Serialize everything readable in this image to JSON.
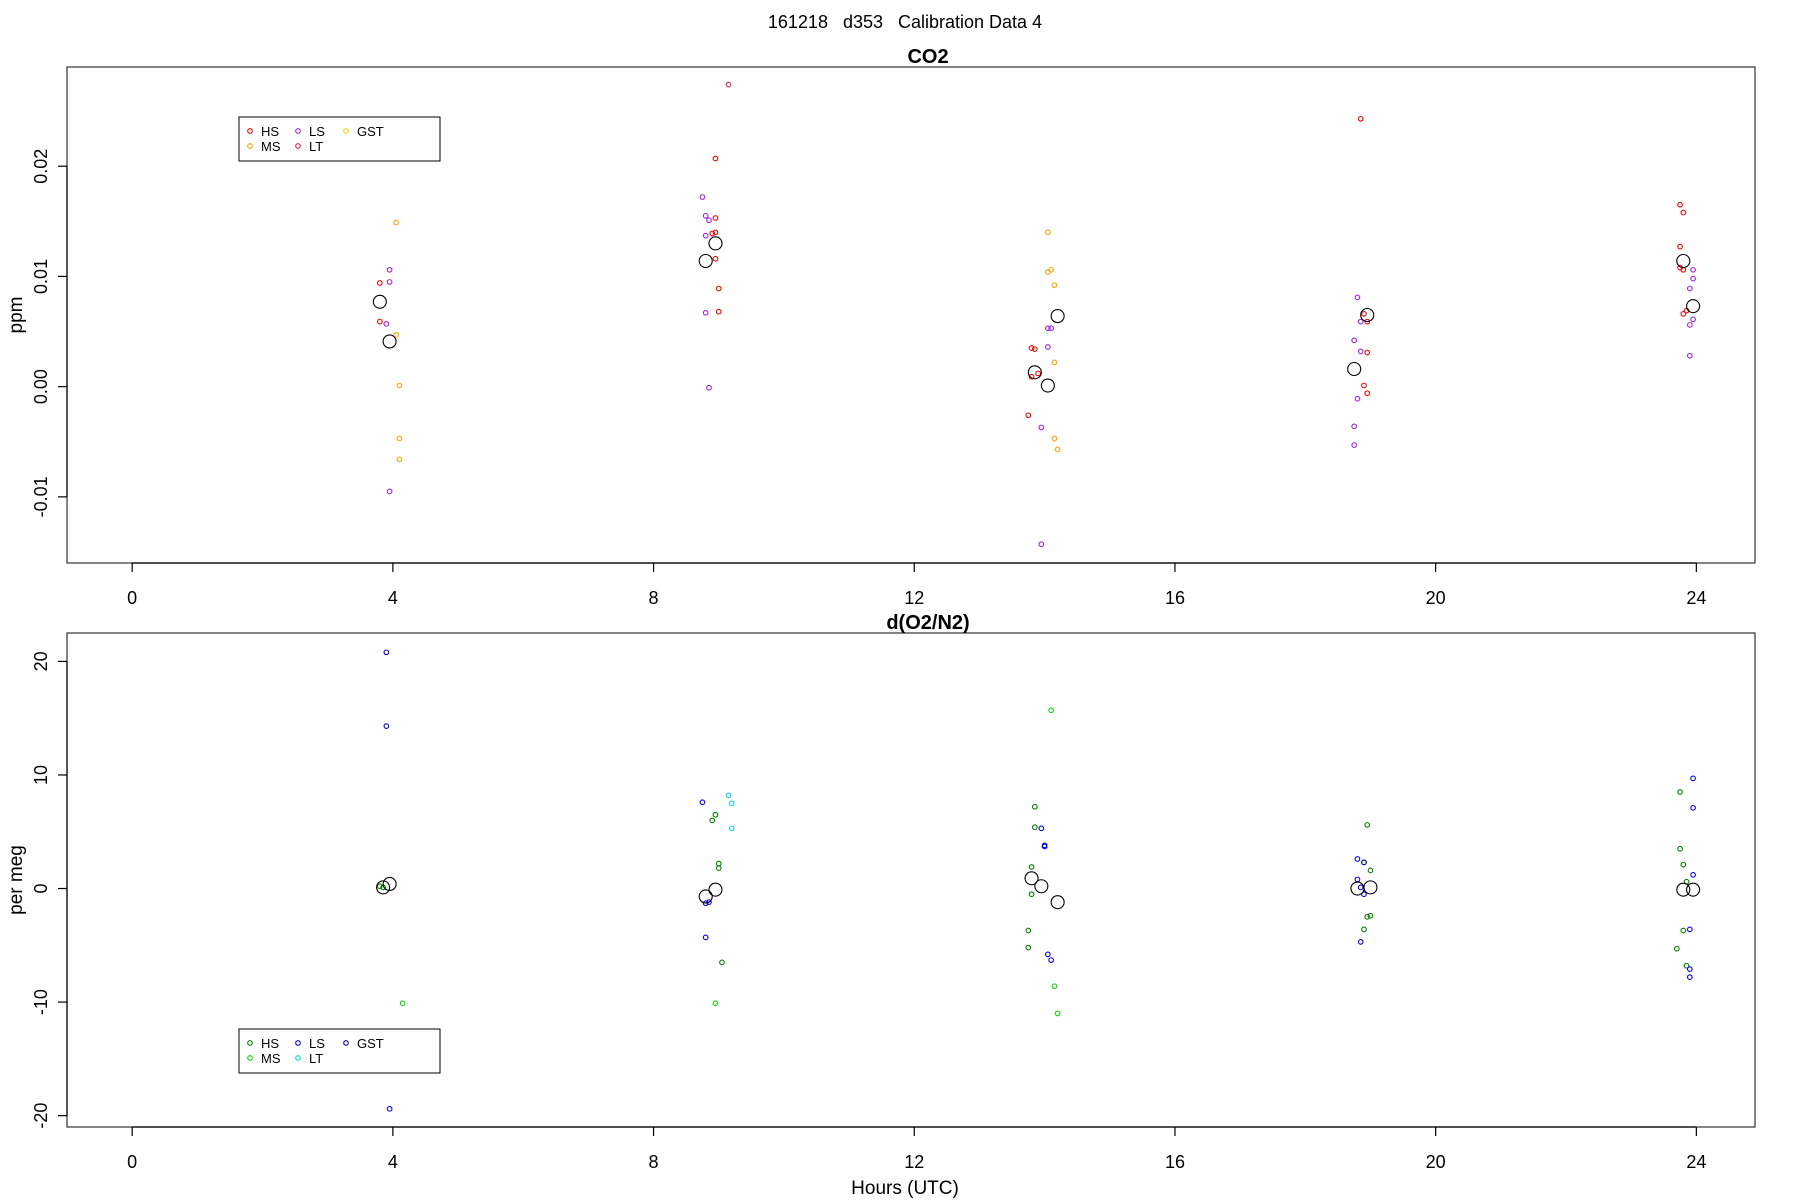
{
  "main_title": "161218   d353   Calibration Data 4",
  "chart_data": [
    {
      "type": "scatter",
      "title": "CO2",
      "ylabel": "ppm",
      "xlabel": "",
      "xlim": [
        -1.0,
        24.9
      ],
      "ylim": [
        -0.016,
        0.029
      ],
      "xticks": [
        0,
        4,
        8,
        12,
        16,
        20,
        24
      ],
      "xtick_labels": [
        "0",
        "4",
        "8",
        "12",
        "16",
        "20",
        "24"
      ],
      "yticks": [
        -0.01,
        0.0,
        0.01,
        0.02
      ],
      "ytick_labels": [
        "-0.01",
        "0.00",
        "0.01",
        "0.02"
      ],
      "legend": {
        "placement": "top-left",
        "entries": [
          {
            "label": "HS",
            "color": "#ff0000"
          },
          {
            "label": "MS",
            "color": "#ffa500"
          },
          {
            "label": "LS",
            "color": "#a020f0"
          },
          {
            "label": "LT",
            "color": "#e0203c"
          },
          {
            "label": "GST",
            "color": "#ffd700"
          }
        ]
      },
      "series": [
        {
          "color": "#ff0000",
          "points": [
            [
              3.8,
              0.0094
            ],
            [
              3.8,
              0.0059
            ],
            [
              8.95,
              0.0207
            ],
            [
              8.95,
              0.0153
            ],
            [
              8.9,
              0.0139
            ],
            [
              8.95,
              0.014
            ],
            [
              8.95,
              0.0116
            ],
            [
              9.0,
              0.0089
            ],
            [
              9.0,
              0.0068
            ],
            [
              13.8,
              0.0035
            ],
            [
              13.85,
              0.0034
            ],
            [
              13.9,
              0.0012
            ],
            [
              13.8,
              0.0009
            ],
            [
              13.75,
              -0.0026
            ],
            [
              18.85,
              0.0243
            ],
            [
              18.9,
              0.0066
            ],
            [
              18.95,
              0.0031
            ],
            [
              18.95,
              0.0059
            ],
            [
              18.9,
              0.0001
            ],
            [
              18.95,
              -0.0006
            ],
            [
              23.75,
              0.0165
            ],
            [
              23.8,
              0.0158
            ],
            [
              23.75,
              0.0127
            ],
            [
              23.75,
              0.0108
            ],
            [
              23.8,
              0.0106
            ],
            [
              23.85,
              0.0069
            ],
            [
              23.8,
              0.0066
            ]
          ]
        },
        {
          "color": "#ffa500",
          "points": [
            [
              4.05,
              0.0149
            ],
            [
              4.05,
              0.0047
            ],
            [
              4.1,
              0.0001
            ],
            [
              4.1,
              -0.0047
            ],
            [
              4.1,
              -0.0066
            ],
            [
              14.05,
              0.014
            ],
            [
              14.1,
              0.0106
            ],
            [
              14.05,
              0.0104
            ],
            [
              14.15,
              0.0092
            ],
            [
              14.15,
              0.0022
            ],
            [
              14.15,
              -0.0047
            ],
            [
              14.2,
              -0.0057
            ]
          ]
        },
        {
          "color": "#a020f0",
          "points": [
            [
              3.95,
              0.0106
            ],
            [
              3.95,
              0.0095
            ],
            [
              3.9,
              0.0057
            ],
            [
              3.95,
              -0.0095
            ],
            [
              8.75,
              0.0172
            ],
            [
              8.8,
              0.0155
            ],
            [
              8.85,
              0.0151
            ],
            [
              8.8,
              0.0137
            ],
            [
              8.8,
              0.0067
            ],
            [
              8.85,
              -0.0001
            ],
            [
              14.05,
              0.0053
            ],
            [
              14.1,
              0.0053
            ],
            [
              14.05,
              0.0036
            ],
            [
              13.95,
              -0.0037
            ],
            [
              13.95,
              -0.0143
            ],
            [
              18.8,
              0.0081
            ],
            [
              18.85,
              0.0059
            ],
            [
              18.75,
              0.0042
            ],
            [
              18.85,
              0.0032
            ],
            [
              18.8,
              -0.0011
            ],
            [
              18.75,
              -0.0036
            ],
            [
              18.75,
              -0.0053
            ],
            [
              23.95,
              0.0106
            ],
            [
              23.95,
              0.0098
            ],
            [
              23.9,
              0.0089
            ],
            [
              23.95,
              0.0061
            ],
            [
              23.9,
              0.0056
            ],
            [
              23.9,
              0.0028
            ]
          ]
        },
        {
          "color": "#e0203c",
          "points": [
            [
              9.15,
              0.0274
            ]
          ]
        }
      ],
      "means": [
        [
          3.8,
          0.0077
        ],
        [
          3.95,
          0.0041
        ],
        [
          8.8,
          0.0114
        ],
        [
          8.95,
          0.013
        ],
        [
          13.85,
          0.0013
        ],
        [
          14.05,
          0.0001
        ],
        [
          14.2,
          0.0064
        ],
        [
          18.75,
          0.0016
        ],
        [
          18.95,
          0.0065
        ],
        [
          23.8,
          0.0114
        ],
        [
          23.95,
          0.0073
        ]
      ]
    },
    {
      "type": "scatter",
      "title": "d(O2/N2)",
      "ylabel": "per meg",
      "xlabel": "Hours (UTC)",
      "xlim": [
        -1.0,
        24.9
      ],
      "ylim": [
        -21,
        22.5
      ],
      "xticks": [
        0,
        4,
        8,
        12,
        16,
        20,
        24
      ],
      "xtick_labels": [
        "0",
        "4",
        "8",
        "12",
        "16",
        "20",
        "24"
      ],
      "yticks": [
        -20,
        -10,
        0,
        10,
        20
      ],
      "ytick_labels": [
        "-20",
        "-10",
        "0",
        "10",
        "20"
      ],
      "legend": {
        "placement": "bottom-left",
        "entries": [
          {
            "label": "HS",
            "color": "#008000"
          },
          {
            "label": "MS",
            "color": "#00e000"
          },
          {
            "label": "LS",
            "color": "#0000ff"
          },
          {
            "label": "LT",
            "color": "#00e0e0"
          },
          {
            "label": "GST",
            "color": "#0000a0"
          }
        ]
      },
      "series": [
        {
          "color": "#008000",
          "points": [
            [
              3.8,
              0.2
            ],
            [
              3.85,
              0.1
            ],
            [
              8.95,
              6.5
            ],
            [
              8.9,
              6.0
            ],
            [
              9.0,
              2.2
            ],
            [
              9.0,
              1.8
            ],
            [
              9.05,
              -6.5
            ],
            [
              13.85,
              7.2
            ],
            [
              13.85,
              5.4
            ],
            [
              13.8,
              1.9
            ],
            [
              13.8,
              -0.5
            ],
            [
              13.75,
              -3.7
            ],
            [
              13.75,
              -5.2
            ],
            [
              18.95,
              5.6
            ],
            [
              18.9,
              2.3
            ],
            [
              19.0,
              1.6
            ],
            [
              18.95,
              -2.5
            ],
            [
              19.0,
              -2.4
            ],
            [
              18.9,
              -3.6
            ],
            [
              23.75,
              8.5
            ],
            [
              23.75,
              3.5
            ],
            [
              23.8,
              2.1
            ],
            [
              23.85,
              0.6
            ],
            [
              23.8,
              -3.7
            ],
            [
              23.85,
              -6.8
            ],
            [
              23.7,
              -5.3
            ]
          ]
        },
        {
          "color": "#00e000",
          "points": [
            [
              4.15,
              -10.1
            ],
            [
              8.95,
              -10.1
            ],
            [
              14.1,
              15.7
            ],
            [
              14.15,
              -8.6
            ],
            [
              14.2,
              -11.0
            ]
          ]
        },
        {
          "color": "#0000ff",
          "points": [
            [
              3.9,
              20.8
            ],
            [
              3.9,
              14.3
            ],
            [
              3.95,
              -19.4
            ],
            [
              8.75,
              7.6
            ],
            [
              8.8,
              -4.3
            ],
            [
              8.85,
              -1.2
            ],
            [
              8.8,
              -1.3
            ],
            [
              13.95,
              5.3
            ],
            [
              14.0,
              3.8
            ],
            [
              14.0,
              3.7
            ],
            [
              14.05,
              -5.8
            ],
            [
              14.1,
              -6.3
            ],
            [
              18.8,
              2.6
            ],
            [
              18.9,
              2.3
            ],
            [
              18.8,
              0.8
            ],
            [
              18.85,
              0.1
            ],
            [
              18.9,
              -0.5
            ],
            [
              18.85,
              -4.7
            ],
            [
              23.95,
              9.7
            ],
            [
              23.95,
              7.1
            ],
            [
              23.95,
              1.2
            ],
            [
              23.9,
              -3.6
            ],
            [
              23.9,
              -7.1
            ],
            [
              23.9,
              -7.8
            ]
          ]
        },
        {
          "color": "#00e0e0",
          "points": [
            [
              9.15,
              8.2
            ],
            [
              9.2,
              7.5
            ],
            [
              9.2,
              5.3
            ]
          ]
        }
      ],
      "means": [
        [
          3.85,
          0.1
        ],
        [
          3.95,
          0.4
        ],
        [
          8.8,
          -0.7
        ],
        [
          8.95,
          -0.1
        ],
        [
          13.8,
          0.9
        ],
        [
          13.95,
          0.2
        ],
        [
          14.2,
          -1.2
        ],
        [
          18.8,
          0.0
        ],
        [
          19.0,
          0.1
        ],
        [
          23.8,
          -0.1
        ],
        [
          23.95,
          -0.1
        ]
      ]
    }
  ]
}
